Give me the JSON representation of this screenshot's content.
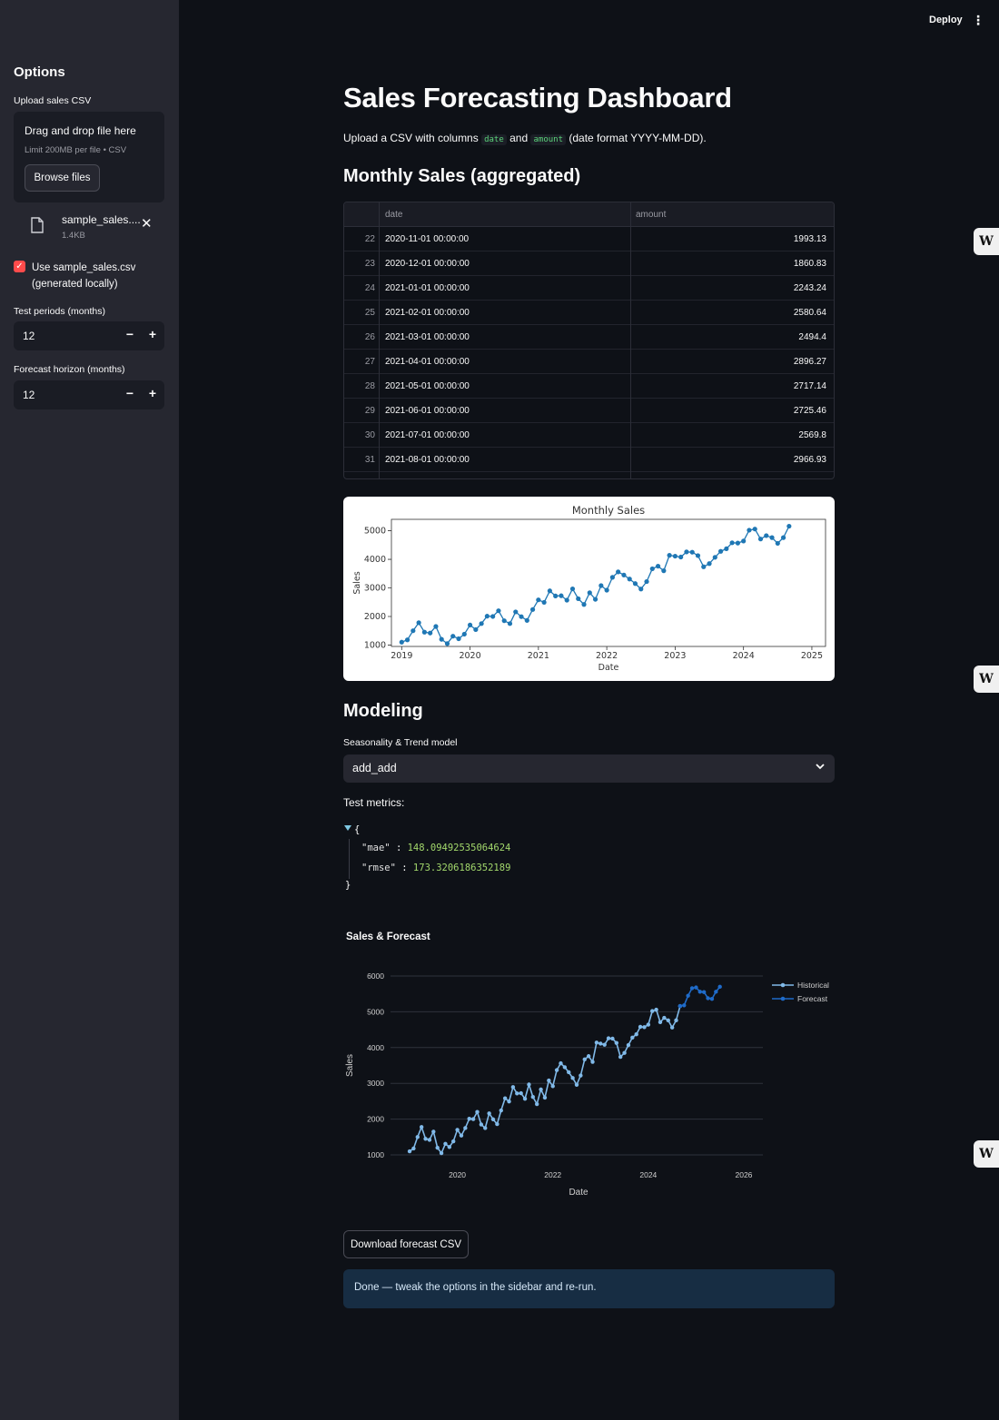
{
  "header": {
    "deploy_label": "Deploy",
    "menu_glyph": "⋮"
  },
  "sidebar": {
    "title": "Options",
    "upload_label": "Upload sales CSV",
    "dropzone": {
      "title": "Drag and drop file here",
      "subtitle": "Limit 200MB per file • CSV",
      "browse_label": "Browse files"
    },
    "file": {
      "name": "sample_sales....",
      "size": "1.4KB",
      "close_glyph": "✕"
    },
    "checkbox": {
      "label": "Use sample_sales.csv (generated locally)",
      "checked": true,
      "check_glyph": "✓"
    },
    "test_periods": {
      "label": "Test periods (months)",
      "value": "12"
    },
    "forecast_horizon": {
      "label": "Forecast horizon (months)",
      "value": "12"
    },
    "minus_glyph": "−",
    "plus_glyph": "+"
  },
  "main": {
    "title": "Sales Forecasting Dashboard",
    "intro": {
      "pre": "Upload a CSV with columns",
      "col1": "date",
      "mid": "and",
      "col2": "amount",
      "post": "(date format YYYY-MM-DD)."
    },
    "monthly_heading": "Monthly Sales (aggregated)",
    "table": {
      "columns": [
        "date",
        "amount"
      ],
      "rows": [
        {
          "idx": "22",
          "date": "2020-11-01 00:00:00",
          "amount": "1993.13"
        },
        {
          "idx": "23",
          "date": "2020-12-01 00:00:00",
          "amount": "1860.83"
        },
        {
          "idx": "24",
          "date": "2021-01-01 00:00:00",
          "amount": "2243.24"
        },
        {
          "idx": "25",
          "date": "2021-02-01 00:00:00",
          "amount": "2580.64"
        },
        {
          "idx": "26",
          "date": "2021-03-01 00:00:00",
          "amount": "2494.4"
        },
        {
          "idx": "27",
          "date": "2021-04-01 00:00:00",
          "amount": "2896.27"
        },
        {
          "idx": "28",
          "date": "2021-05-01 00:00:00",
          "amount": "2717.14"
        },
        {
          "idx": "29",
          "date": "2021-06-01 00:00:00",
          "amount": "2725.46"
        },
        {
          "idx": "30",
          "date": "2021-07-01 00:00:00",
          "amount": "2569.8"
        },
        {
          "idx": "31",
          "date": "2021-08-01 00:00:00",
          "amount": "2966.93"
        }
      ]
    },
    "modeling_heading": "Modeling",
    "select": {
      "label": "Seasonality & Trend model",
      "value": "add_add"
    },
    "metrics": {
      "label": "Test metrics:",
      "mae_key": "\"mae\"",
      "mae_value": "148.09492535064624",
      "rmse_key": "\"rmse\"",
      "rmse_value": "173.3206186352189",
      "open_brace": "{",
      "close_brace": "}",
      "sep": ":"
    },
    "download_label": "Download forecast CSV",
    "info_text": "Done — tweak the options in the sidebar and re-run."
  },
  "badge_glyph": "W",
  "chart_data": [
    {
      "type": "line",
      "title": "Monthly Sales",
      "xlabel": "Date",
      "ylabel": "Sales",
      "x_start": "2019-01",
      "x_ticks": [
        "2019",
        "2020",
        "2021",
        "2022",
        "2023",
        "2024",
        "2025"
      ],
      "y_ticks": [
        1000,
        2000,
        3000,
        4000,
        5000
      ],
      "ylim": [
        950,
        5400
      ],
      "xlim": [
        2018.85,
        2025.2
      ],
      "grid": false,
      "color": "#1f77b4",
      "series": [
        {
          "values": [
            1100,
            1180,
            1500,
            1780,
            1450,
            1420,
            1650,
            1200,
            1050,
            1310,
            1220,
            1380,
            1700,
            1540,
            1750,
            2010,
            2000,
            2200,
            1850,
            1750,
            2160,
            1993,
            1861,
            2243,
            2581,
            2494,
            2896,
            2717,
            2725,
            2570,
            2967,
            2620,
            2420,
            2830,
            2600,
            3080,
            2920,
            3370,
            3560,
            3450,
            3310,
            3150,
            2960,
            3220,
            3670,
            3760,
            3600,
            4140,
            4110,
            4080,
            4260,
            4250,
            4130,
            3740,
            3850,
            4070,
            4280,
            4370,
            4580,
            4570,
            4640,
            5020,
            5060,
            4710,
            4830,
            4760,
            4560,
            4760,
            5160
          ]
        }
      ]
    },
    {
      "type": "line",
      "title": "Sales & Forecast",
      "xlabel": "Date",
      "ylabel": "Sales",
      "x_start": "2019-01",
      "x_ticks": [
        "2020",
        "2022",
        "2024",
        "2026"
      ],
      "y_ticks": [
        1000,
        2000,
        3000,
        4000,
        5000,
        6000
      ],
      "ylim": [
        1000,
        6000
      ],
      "xlim": [
        2018.6,
        2026.4
      ],
      "legend": "top-right",
      "series": [
        {
          "name": "Historical",
          "color": "#80b9e8",
          "values": [
            1100,
            1180,
            1500,
            1780,
            1450,
            1420,
            1650,
            1200,
            1050,
            1310,
            1220,
            1380,
            1700,
            1540,
            1750,
            2010,
            2000,
            2200,
            1850,
            1750,
            2160,
            1993,
            1861,
            2243,
            2581,
            2494,
            2896,
            2717,
            2725,
            2570,
            2967,
            2620,
            2420,
            2830,
            2600,
            3080,
            2920,
            3370,
            3560,
            3450,
            3310,
            3150,
            2960,
            3220,
            3670,
            3760,
            3600,
            4140,
            4110,
            4080,
            4260,
            4250,
            4130,
            3740,
            3850,
            4070,
            4280,
            4370,
            4580,
            4570,
            4640,
            5020,
            5060,
            4710,
            4830,
            4760,
            4560,
            4760,
            5160
          ]
        },
        {
          "name": "Forecast",
          "color": "#1f6bc9",
          "start_index": 68,
          "values": [
            5160,
            5180,
            5450,
            5660,
            5680,
            5560,
            5550,
            5380,
            5360,
            5560,
            5700
          ]
        }
      ]
    }
  ]
}
